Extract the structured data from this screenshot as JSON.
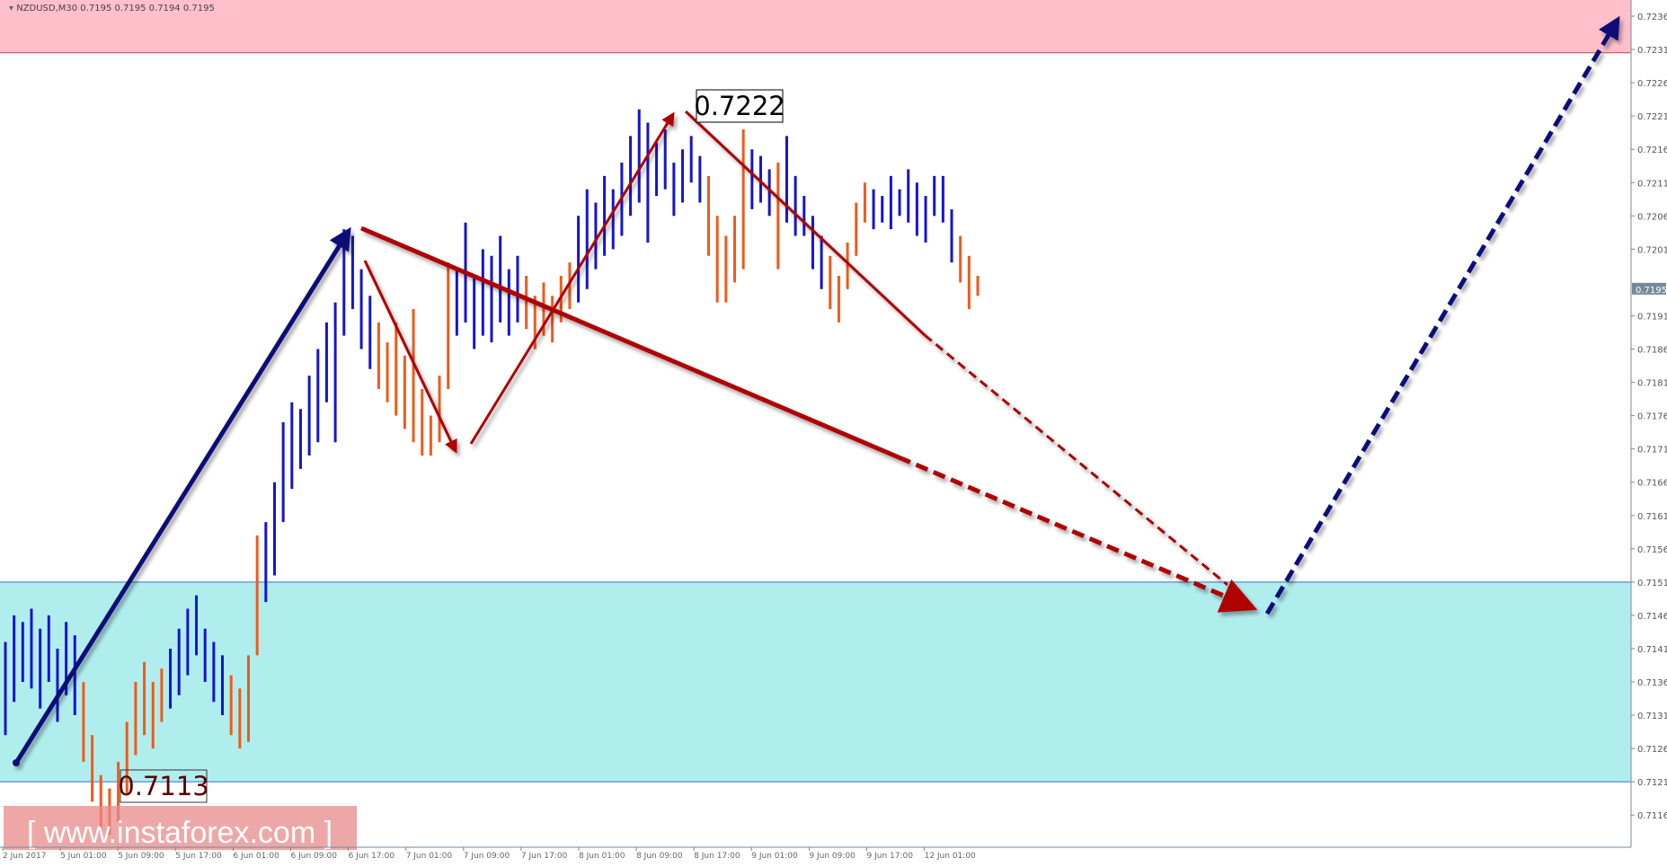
{
  "chart_data": {
    "type": "ohlc",
    "symbol_header": "NZDUSD,M30  0.7195 0.7195 0.7194 0.7195",
    "ylim": [
      0.71125,
      0.72385
    ],
    "y_ticks": [
      "0.7236",
      "0.7231",
      "0.7226",
      "0.7221",
      "0.7216",
      "0.7211",
      "0.7206",
      "0.7201",
      "0.7191",
      "0.7186",
      "0.7181",
      "0.7176",
      "0.7171",
      "0.7166",
      "0.7161",
      "0.7156",
      "0.7151",
      "0.7146",
      "0.7141",
      "0.7136",
      "0.7131",
      "0.7126",
      "0.7121",
      "0.7116"
    ],
    "x_ticks": [
      "2 Jun 2017",
      "5 Jun 01:00",
      "5 Jun 09:00",
      "5 Jun 17:00",
      "6 Jun 01:00",
      "6 Jun 09:00",
      "6 Jun 17:00",
      "7 Jun 01:00",
      "7 Jun 09:00",
      "7 Jun 17:00",
      "8 Jun 01:00",
      "8 Jun 09:00",
      "8 Jun 17:00",
      "9 Jun 01:00",
      "9 Jun 09:00",
      "9 Jun 17:00",
      "12 Jun 01:00"
    ],
    "current_price": "0.7195",
    "colors": {
      "up": "#1414d2",
      "down": "#f05a1a",
      "resistance_zone": "#ffc0cb",
      "support_zone": "#b0eeee",
      "wave_up": "#0a0a78",
      "wave_down": "#b00000"
    },
    "zones": [
      {
        "name": "resistance",
        "from": 0.72305,
        "to": 0.724
      },
      {
        "name": "support",
        "from": 0.7121,
        "to": 0.7151
      }
    ],
    "annotations": {
      "high_label": "0.7222",
      "low_label": "0.7113",
      "watermark": "[ www.instaforex.com ]"
    },
    "bars": [
      [
        0.7142,
        0.7128,
        "b"
      ],
      [
        0.7146,
        0.7133,
        "b"
      ],
      [
        0.7145,
        0.7136,
        "b"
      ],
      [
        0.7147,
        0.7135,
        "b"
      ],
      [
        0.7144,
        0.7132,
        "b"
      ],
      [
        0.7146,
        0.7136,
        "b"
      ],
      [
        0.7141,
        0.713,
        "b"
      ],
      [
        0.7145,
        0.7134,
        "b"
      ],
      [
        0.7143,
        0.7131,
        "b"
      ],
      [
        0.7136,
        0.7124,
        "o"
      ],
      [
        0.7128,
        0.7118,
        "o"
      ],
      [
        0.7122,
        0.7114,
        "o"
      ],
      [
        0.712,
        0.7113,
        "o"
      ],
      [
        0.7124,
        0.7115,
        "o"
      ],
      [
        0.713,
        0.7119,
        "o"
      ],
      [
        0.7136,
        0.7125,
        "o"
      ],
      [
        0.7139,
        0.7128,
        "o"
      ],
      [
        0.7136,
        0.7126,
        "o"
      ],
      [
        0.7138,
        0.713,
        "o"
      ],
      [
        0.7141,
        0.7132,
        "b"
      ],
      [
        0.7144,
        0.7134,
        "b"
      ],
      [
        0.7147,
        0.7137,
        "b"
      ],
      [
        0.7149,
        0.714,
        "b"
      ],
      [
        0.7144,
        0.7136,
        "b"
      ],
      [
        0.7142,
        0.7133,
        "b"
      ],
      [
        0.714,
        0.7131,
        "b"
      ],
      [
        0.7137,
        0.7128,
        "o"
      ],
      [
        0.7135,
        0.7126,
        "o"
      ],
      [
        0.714,
        0.7127,
        "o"
      ],
      [
        0.7158,
        0.714,
        "o"
      ],
      [
        0.716,
        0.7148,
        "b"
      ],
      [
        0.7166,
        0.7152,
        "b"
      ],
      [
        0.7175,
        0.716,
        "b"
      ],
      [
        0.7178,
        0.7165,
        "b"
      ],
      [
        0.7177,
        0.7168,
        "b"
      ],
      [
        0.7182,
        0.717,
        "b"
      ],
      [
        0.7186,
        0.7172,
        "b"
      ],
      [
        0.719,
        0.7178,
        "b"
      ],
      [
        0.7193,
        0.7172,
        "b"
      ],
      [
        0.7204,
        0.7188,
        "b"
      ],
      [
        0.7203,
        0.7192,
        "b"
      ],
      [
        0.7198,
        0.7186,
        "b"
      ],
      [
        0.7194,
        0.7183,
        "b"
      ],
      [
        0.719,
        0.718,
        "o"
      ],
      [
        0.7187,
        0.7178,
        "o"
      ],
      [
        0.719,
        0.7176,
        "o"
      ],
      [
        0.7185,
        0.7174,
        "o"
      ],
      [
        0.7192,
        0.7172,
        "o"
      ],
      [
        0.718,
        0.717,
        "o"
      ],
      [
        0.7176,
        0.717,
        "o"
      ],
      [
        0.7182,
        0.7172,
        "o"
      ],
      [
        0.7199,
        0.718,
        "o"
      ],
      [
        0.7198,
        0.7188,
        "b"
      ],
      [
        0.7205,
        0.719,
        "b"
      ],
      [
        0.7197,
        0.7186,
        "b"
      ],
      [
        0.7201,
        0.7188,
        "b"
      ],
      [
        0.72,
        0.7187,
        "b"
      ],
      [
        0.7203,
        0.719,
        "b"
      ],
      [
        0.7198,
        0.7188,
        "b"
      ],
      [
        0.72,
        0.719,
        "b"
      ],
      [
        0.7197,
        0.7189,
        "o"
      ],
      [
        0.7194,
        0.7186,
        "o"
      ],
      [
        0.7196,
        0.7188,
        "o"
      ],
      [
        0.7194,
        0.7187,
        "o"
      ],
      [
        0.7197,
        0.719,
        "o"
      ],
      [
        0.7199,
        0.7192,
        "o"
      ],
      [
        0.7206,
        0.7193,
        "b"
      ],
      [
        0.721,
        0.7195,
        "b"
      ],
      [
        0.7208,
        0.7198,
        "b"
      ],
      [
        0.7212,
        0.72,
        "b"
      ],
      [
        0.721,
        0.7201,
        "b"
      ],
      [
        0.7214,
        0.7203,
        "b"
      ],
      [
        0.7218,
        0.7206,
        "b"
      ],
      [
        0.7222,
        0.7208,
        "b"
      ],
      [
        0.722,
        0.7202,
        "b"
      ],
      [
        0.7217,
        0.7209,
        "b"
      ],
      [
        0.7219,
        0.721,
        "b"
      ],
      [
        0.7214,
        0.7206,
        "b"
      ],
      [
        0.7216,
        0.7208,
        "b"
      ],
      [
        0.7218,
        0.7211,
        "b"
      ],
      [
        0.7215,
        0.7208,
        "b"
      ],
      [
        0.7212,
        0.72,
        "o"
      ],
      [
        0.7206,
        0.7193,
        "o"
      ],
      [
        0.7203,
        0.7193,
        "o"
      ],
      [
        0.7206,
        0.7196,
        "o"
      ],
      [
        0.7219,
        0.7198,
        "o"
      ],
      [
        0.7216,
        0.7207,
        "b"
      ],
      [
        0.7215,
        0.7208,
        "b"
      ],
      [
        0.7213,
        0.7206,
        "b"
      ],
      [
        0.7214,
        0.7198,
        "o"
      ],
      [
        0.7218,
        0.7205,
        "b"
      ],
      [
        0.7212,
        0.7203,
        "b"
      ],
      [
        0.7209,
        0.7203,
        "b"
      ],
      [
        0.7206,
        0.7198,
        "b"
      ],
      [
        0.7203,
        0.7195,
        "b"
      ],
      [
        0.72,
        0.7192,
        "o"
      ],
      [
        0.7197,
        0.719,
        "o"
      ],
      [
        0.7202,
        0.7195,
        "o"
      ],
      [
        0.7208,
        0.72,
        "o"
      ],
      [
        0.7211,
        0.7205,
        "o"
      ],
      [
        0.721,
        0.7204,
        "b"
      ],
      [
        0.7209,
        0.7205,
        "b"
      ],
      [
        0.7212,
        0.7204,
        "b"
      ],
      [
        0.721,
        0.7206,
        "b"
      ],
      [
        0.7213,
        0.7205,
        "b"
      ],
      [
        0.7211,
        0.7203,
        "b"
      ],
      [
        0.7209,
        0.7202,
        "b"
      ],
      [
        0.7212,
        0.7206,
        "b"
      ],
      [
        0.7212,
        0.7205,
        "b"
      ],
      [
        0.7207,
        0.7199,
        "b"
      ],
      [
        0.7203,
        0.7196,
        "o"
      ],
      [
        0.72,
        0.7192,
        "o"
      ],
      [
        0.7197,
        0.7194,
        "o"
      ]
    ]
  }
}
